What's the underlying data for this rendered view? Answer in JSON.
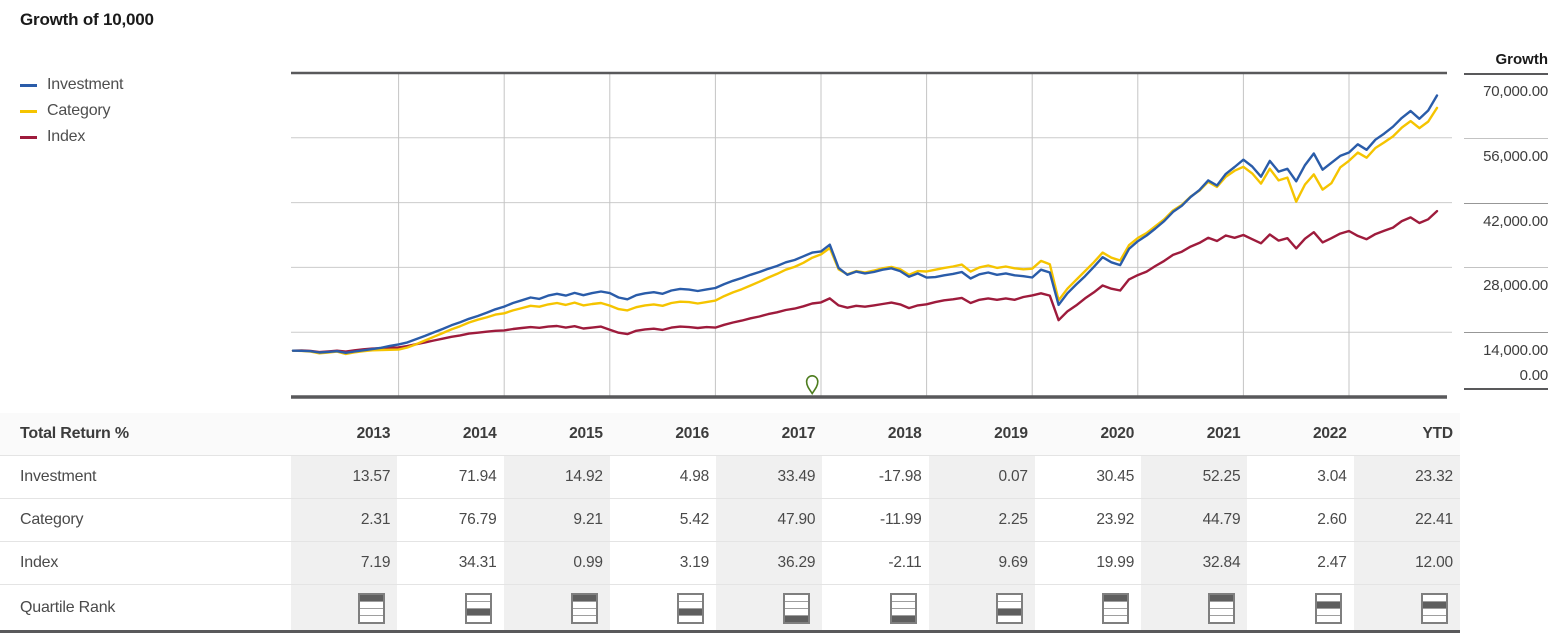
{
  "title": "Growth of 10,000",
  "legend": [
    {
      "label": "Investment",
      "color": "#2a5ca9"
    },
    {
      "label": "Category",
      "color": "#f5c400"
    },
    {
      "label": "Index",
      "color": "#9e1b3c"
    }
  ],
  "axis": {
    "title": "Growth",
    "ticks": [
      "70,000.00",
      "56,000.00",
      "42,000.00",
      "28,000.00",
      "14,000.00",
      "0.00"
    ]
  },
  "chart_data": {
    "type": "line",
    "title": "Growth of 10,000",
    "x_start": "2013-01",
    "x_end": "2023-10",
    "frequency": "monthly",
    "initial_value": 10000,
    "ylim": [
      0,
      70000
    ],
    "y_tick_step": 14000,
    "grid": true,
    "year_gridlines": [
      2014,
      2015,
      2016,
      2017,
      2018,
      2019,
      2020,
      2021,
      2022,
      2023
    ],
    "legend_position": "top-left",
    "marker": {
      "name": "map-pin-icon",
      "color": "#4e7d1f",
      "month_index": 59
    },
    "series": [
      {
        "name": "Investment",
        "color": "#2a5ca9",
        "values": [
          10000,
          9980,
          9900,
          9620,
          9750,
          9890,
          9560,
          9820,
          10080,
          10350,
          10620,
          11050,
          11357,
          11800,
          12500,
          13200,
          13950,
          14700,
          15500,
          16150,
          16900,
          17500,
          18200,
          18950,
          19527,
          20300,
          20900,
          21500,
          21200,
          21900,
          22300,
          21900,
          22500,
          22000,
          22450,
          22800,
          22441,
          21500,
          21100,
          22000,
          22400,
          22650,
          22300,
          23000,
          23350,
          23200,
          22900,
          23250,
          23558,
          24400,
          25100,
          25700,
          26400,
          27000,
          27700,
          28300,
          29100,
          29600,
          30400,
          31200,
          31447,
          32900,
          27900,
          26400,
          27100,
          26700,
          27000,
          27500,
          27800,
          27200,
          26000,
          26700,
          25793,
          25900,
          26300,
          26600,
          27000,
          25600,
          26500,
          26900,
          26400,
          26700,
          26300,
          26100,
          25811,
          27500,
          26900,
          19900,
          22400,
          24300,
          26100,
          28100,
          30200,
          29100,
          28500,
          32000,
          33670,
          34900,
          36400,
          38000,
          40000,
          41300,
          43200,
          44700,
          46800,
          45700,
          48200,
          49700,
          51263,
          49800,
          47600,
          51000,
          48700,
          49300,
          46600,
          50100,
          52600,
          49100,
          50600,
          52100,
          52821,
          54600,
          53400,
          55600,
          56900,
          58400,
          60300,
          61800,
          60100,
          61900,
          65139
        ]
      },
      {
        "name": "Category",
        "color": "#f5c400",
        "values": [
          10000,
          9950,
          9800,
          9450,
          9600,
          9800,
          9300,
          9650,
          9900,
          10100,
          10150,
          10200,
          10231,
          10700,
          11400,
          12200,
          13000,
          13800,
          14600,
          15300,
          16100,
          16700,
          17200,
          17800,
          18088,
          18700,
          19200,
          19700,
          19500,
          20000,
          20300,
          19900,
          20400,
          19800,
          20100,
          20300,
          19754,
          19000,
          18700,
          19400,
          19800,
          20000,
          19700,
          20300,
          20600,
          20500,
          20200,
          20500,
          20825,
          21800,
          22600,
          23300,
          24100,
          24900,
          25800,
          26600,
          27500,
          28100,
          29000,
          30100,
          30800,
          32200,
          27600,
          26500,
          27200,
          26900,
          27300,
          27800,
          28100,
          27600,
          26400,
          27200,
          27107,
          27500,
          27900,
          28200,
          28600,
          27100,
          28000,
          28400,
          27900,
          28200,
          27800,
          27600,
          27717,
          29400,
          28700,
          20900,
          23400,
          25300,
          27200,
          29100,
          31200,
          30100,
          29500,
          32800,
          34347,
          35400,
          36900,
          38400,
          40300,
          41500,
          43300,
          44600,
          46500,
          45400,
          47600,
          48900,
          49731,
          48300,
          46100,
          49300,
          46800,
          47400,
          42200,
          45900,
          48100,
          44800,
          46200,
          49600,
          51024,
          52800,
          51700,
          53800,
          55000,
          56300,
          58200,
          59600,
          58100,
          59500,
          62459
        ]
      },
      {
        "name": "Index",
        "color": "#9e1b3c",
        "values": [
          10000,
          10050,
          9950,
          9700,
          9850,
          10000,
          9800,
          10100,
          10300,
          10450,
          10550,
          10650,
          10719,
          11000,
          11400,
          11800,
          12200,
          12600,
          13000,
          13300,
          13700,
          13900,
          14100,
          14300,
          14397,
          14700,
          14900,
          15100,
          14950,
          15200,
          15350,
          15000,
          15300,
          14800,
          15000,
          15200,
          14540,
          13900,
          13600,
          14300,
          14600,
          14750,
          14500,
          15000,
          15200,
          15100,
          14900,
          15100,
          15003,
          15600,
          16100,
          16500,
          17000,
          17400,
          17900,
          18300,
          18800,
          19100,
          19600,
          20200,
          20448,
          21300,
          19800,
          19300,
          19700,
          19500,
          19800,
          20100,
          20400,
          20000,
          19200,
          19800,
          20017,
          20500,
          20900,
          21100,
          21400,
          20300,
          21000,
          21300,
          21000,
          21300,
          21000,
          21600,
          21957,
          22400,
          21900,
          16600,
          18500,
          19800,
          21300,
          22600,
          24100,
          23400,
          23000,
          25400,
          26346,
          27100,
          28300,
          29400,
          30700,
          31400,
          32500,
          33300,
          34400,
          33700,
          34900,
          34400,
          34998,
          34100,
          33200,
          35100,
          33800,
          34300,
          32100,
          34200,
          35600,
          33400,
          34300,
          35300,
          35863,
          34800,
          34100,
          35200,
          35900,
          36600,
          38000,
          38800,
          37600,
          38400,
          40166
        ]
      }
    ]
  },
  "table": {
    "header": [
      "Total Return %",
      "2013",
      "2014",
      "2015",
      "2016",
      "2017",
      "2018",
      "2019",
      "2020",
      "2021",
      "2022",
      "YTD"
    ],
    "shaded_columns": [
      1,
      3,
      5,
      7,
      9,
      11
    ],
    "rows": [
      {
        "label": "Investment",
        "values": [
          "13.57",
          "71.94",
          "14.92",
          "4.98",
          "33.49",
          "-17.98",
          "0.07",
          "30.45",
          "52.25",
          "3.04",
          "23.32"
        ]
      },
      {
        "label": "Category",
        "values": [
          "2.31",
          "76.79",
          "9.21",
          "5.42",
          "47.90",
          "-11.99",
          "2.25",
          "23.92",
          "44.79",
          "2.60",
          "22.41"
        ]
      },
      {
        "label": "Index",
        "values": [
          "7.19",
          "34.31",
          "0.99",
          "3.19",
          "36.29",
          "-2.11",
          "9.69",
          "19.99",
          "32.84",
          "2.47",
          "12.00"
        ]
      }
    ],
    "quartile_row": {
      "label": "Quartile Rank",
      "icon": "quartile-rank-icon",
      "quartiles": [
        1,
        3,
        1,
        3,
        4,
        4,
        3,
        1,
        1,
        2,
        2
      ]
    }
  }
}
